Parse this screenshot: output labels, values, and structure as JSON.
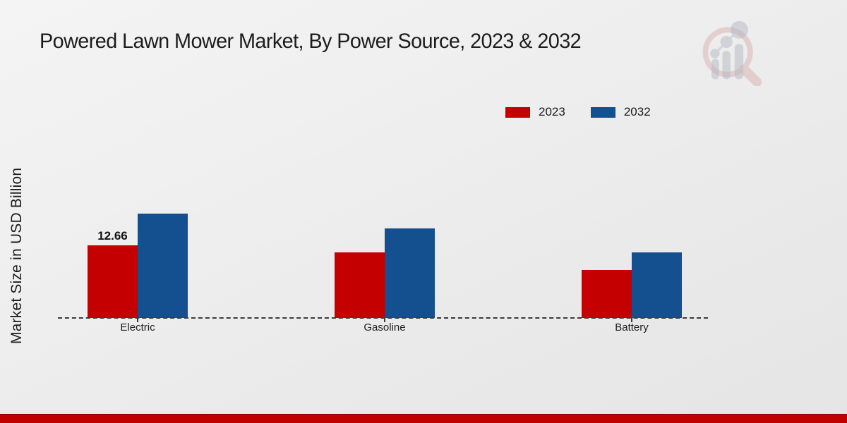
{
  "title": "Powered Lawn Mower Market, By Power Source, 2023 & 2032",
  "ylabel": "Market Size in USD Billion",
  "legend": [
    {
      "label": "2023",
      "color": "#c40000"
    },
    {
      "label": "2032",
      "color": "#14508f"
    }
  ],
  "chart_data": {
    "type": "bar",
    "title": "Powered Lawn Mower Market, By Power Source, 2023 & 2032",
    "xlabel": "",
    "ylabel": "Market Size in USD Billion",
    "categories": [
      "Electric",
      "Gasoline",
      "Battery"
    ],
    "series": [
      {
        "name": "2023",
        "color": "#c40000",
        "values": [
          12.66,
          11.4,
          8.4
        ]
      },
      {
        "name": "2032",
        "color": "#14508f",
        "values": [
          18.2,
          15.6,
          11.4
        ]
      }
    ],
    "bar_value_labels": [
      {
        "category": "Electric",
        "series": "2023",
        "text": "12.66"
      }
    ],
    "ylim": [
      0,
      20
    ],
    "grid": false,
    "y_axis_ticks_visible": false,
    "baseline_style": "dashed",
    "legend_position": "top-right"
  },
  "branding": {
    "logo_name": "market-research-future-logo"
  },
  "footer": {
    "bar_color": "#c00000"
  }
}
